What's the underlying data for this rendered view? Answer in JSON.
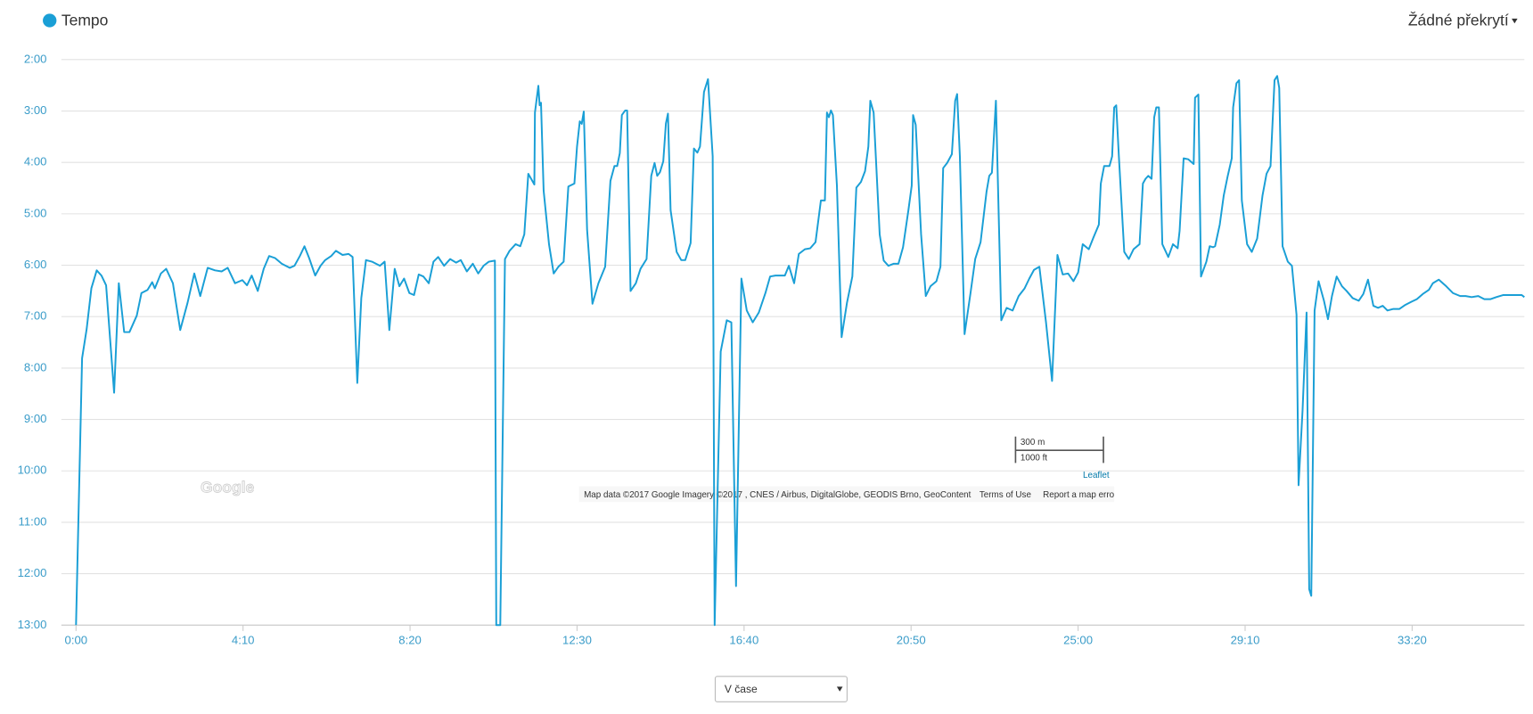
{
  "chart_data": {
    "type": "line",
    "xlim": [
      0,
      2168
    ],
    "xticks": [
      {
        "value": 0,
        "label": "0:00"
      },
      {
        "value": 250,
        "label": "4:10"
      },
      {
        "value": 500,
        "label": "8:20"
      },
      {
        "value": 750,
        "label": "12:30"
      },
      {
        "value": 1000,
        "label": "16:40"
      },
      {
        "value": 1250,
        "label": "20:50"
      },
      {
        "value": 1500,
        "label": "25:00"
      },
      {
        "value": 1750,
        "label": "29:10"
      },
      {
        "value": 2000,
        "label": "33:20"
      }
    ],
    "ylim": [
      13,
      2
    ],
    "yticks": [
      {
        "value": 2,
        "label": "2:00"
      },
      {
        "value": 3,
        "label": "3:00"
      },
      {
        "value": 4,
        "label": "4:00"
      },
      {
        "value": 5,
        "label": "5:00"
      },
      {
        "value": 6,
        "label": "6:00"
      },
      {
        "value": 7,
        "label": "7:00"
      },
      {
        "value": 8,
        "label": "8:00"
      },
      {
        "value": 9,
        "label": "9:00"
      },
      {
        "value": 10,
        "label": "10:00"
      },
      {
        "value": 11,
        "label": "11:00"
      },
      {
        "value": 12,
        "label": "12:00"
      },
      {
        "value": 13,
        "label": "13:00"
      }
    ],
    "grid": true,
    "legend": "top-left",
    "x": [
      0,
      9,
      16,
      23,
      31,
      38,
      45,
      57,
      64,
      72,
      80,
      91,
      98,
      107,
      114,
      118,
      127,
      135,
      145,
      156,
      167,
      177,
      186,
      197,
      208,
      218,
      227,
      238,
      249,
      256,
      263,
      272,
      281,
      289,
      298,
      308,
      320,
      327,
      335,
      342,
      349,
      358,
      366,
      373,
      382,
      389,
      399,
      408,
      414,
      421,
      427,
      434,
      443,
      455,
      462,
      469,
      477,
      484,
      491,
      499,
      506,
      513,
      520,
      528,
      535,
      542,
      551,
      560,
      569,
      576,
      585,
      594,
      602,
      610,
      618,
      627,
      629,
      635,
      642,
      649,
      658,
      665,
      671,
      677,
      686,
      687,
      692,
      694,
      696,
      700,
      708,
      715,
      722,
      730,
      737,
      746,
      750,
      754,
      757,
      760,
      765,
      773,
      782,
      792,
      800,
      806,
      810,
      814,
      817,
      822,
      825,
      830,
      838,
      845,
      854,
      861,
      866,
      870,
      874,
      879,
      883,
      886,
      890,
      899,
      906,
      912,
      920,
      925,
      930,
      934,
      940,
      946,
      953,
      956,
      965,
      974,
      981,
      988,
      996,
      1004,
      1013,
      1022,
      1032,
      1039,
      1047,
      1056,
      1061,
      1067,
      1075,
      1082,
      1091,
      1099,
      1107,
      1115,
      1121,
      1124,
      1127,
      1130,
      1133,
      1139,
      1146,
      1154,
      1162,
      1168,
      1175,
      1181,
      1186,
      1189,
      1194,
      1203,
      1209,
      1216,
      1224,
      1231,
      1238,
      1246,
      1251,
      1253,
      1257,
      1265,
      1272,
      1279,
      1288,
      1294,
      1298,
      1304,
      1311,
      1316,
      1319,
      1323,
      1330,
      1339,
      1346,
      1354,
      1363,
      1367,
      1371,
      1377,
      1385,
      1393,
      1402,
      1411,
      1420,
      1427,
      1434,
      1442,
      1452,
      1461,
      1469,
      1477,
      1485,
      1493,
      1500,
      1507,
      1516,
      1523,
      1531,
      1534,
      1539,
      1547,
      1551,
      1554,
      1557,
      1561,
      1569,
      1576,
      1583,
      1592,
      1597,
      1601,
      1605,
      1610,
      1614,
      1617,
      1621,
      1626,
      1635,
      1642,
      1649,
      1652,
      1658,
      1665,
      1673,
      1675,
      1680,
      1684,
      1692,
      1697,
      1702,
      1705,
      1712,
      1718,
      1724,
      1730,
      1732,
      1737,
      1741,
      1745,
      1753,
      1760,
      1768,
      1776,
      1782,
      1788,
      1794,
      1798,
      1801,
      1806,
      1814,
      1820,
      1827,
      1830,
      1836,
      1842,
      1846,
      1849,
      1854,
      1860,
      1868,
      1874,
      1880,
      1887,
      1895,
      1902,
      1911,
      1920,
      1927,
      1934,
      1942,
      1949,
      1956,
      1963,
      1972,
      1981,
      1990,
      1999,
      2007,
      2016,
      2025,
      2031,
      2040,
      2051,
      2061,
      2072,
      2080,
      2089,
      2099,
      2108,
      2117,
      2126,
      2136,
      2146,
      2156,
      2164,
      2168
    ],
    "series": [
      {
        "name": "Tempo",
        "color": "#1a9fd6",
        "values": [
          13,
          7.81,
          7.24,
          6.45,
          6.1,
          6.2,
          6.39,
          8.48,
          6.35,
          7.3,
          7.3,
          6.98,
          6.54,
          6.48,
          6.33,
          6.45,
          6.16,
          6.07,
          6.35,
          7.26,
          6.73,
          6.16,
          6.6,
          6.05,
          6.1,
          6.12,
          6.05,
          6.35,
          6.29,
          6.39,
          6.2,
          6.5,
          6.07,
          5.82,
          5.86,
          5.97,
          6.05,
          6.01,
          5.82,
          5.63,
          5.86,
          6.2,
          6.01,
          5.9,
          5.82,
          5.72,
          5.8,
          5.78,
          5.84,
          8.29,
          6.64,
          5.9,
          5.93,
          6.01,
          5.93,
          7.26,
          6.07,
          6.41,
          6.26,
          6.54,
          6.58,
          6.18,
          6.22,
          6.35,
          5.93,
          5.84,
          6.01,
          5.88,
          5.95,
          5.9,
          6.12,
          5.97,
          6.16,
          6.01,
          5.93,
          5.91,
          13,
          13,
          5.88,
          5.72,
          5.59,
          5.63,
          5.4,
          4.22,
          4.43,
          3.03,
          2.51,
          2.89,
          2.84,
          4.55,
          5.59,
          6.16,
          6.03,
          5.93,
          4.47,
          4.41,
          3.69,
          3.2,
          3.25,
          3.01,
          5.31,
          6.75,
          6.35,
          6.03,
          4.36,
          4.07,
          4.07,
          3.82,
          3.08,
          2.99,
          2.99,
          6.5,
          6.35,
          6.07,
          5.88,
          4.26,
          4.01,
          4.26,
          4.19,
          3.98,
          3.24,
          3.05,
          4.93,
          5.74,
          5.9,
          5.9,
          5.57,
          3.73,
          3.81,
          3.69,
          2.63,
          2.38,
          3.88,
          13,
          7.68,
          7.07,
          7.11,
          12.24,
          6.26,
          6.88,
          7.11,
          6.92,
          6.54,
          6.22,
          6.2,
          6.2,
          6.2,
          6.01,
          6.35,
          5.78,
          5.69,
          5.67,
          5.55,
          4.74,
          4.74,
          3.03,
          3.12,
          2.99,
          3.08,
          4.45,
          7.4,
          6.73,
          6.22,
          4.49,
          4.38,
          4.17,
          3.69,
          2.8,
          3.03,
          5.4,
          5.91,
          6.01,
          5.97,
          5.97,
          5.65,
          4.93,
          4.45,
          3.08,
          3.27,
          5.4,
          6.6,
          6.41,
          6.31,
          6.03,
          4.11,
          4.01,
          3.84,
          2.8,
          2.67,
          3.88,
          7.34,
          6.54,
          5.88,
          5.55,
          4.57,
          4.26,
          4.2,
          2.8,
          7.07,
          6.83,
          6.88,
          6.6,
          6.45,
          6.26,
          6.09,
          6.03,
          7.11,
          8.25,
          5.8,
          6.18,
          6.16,
          6.31,
          6.14,
          5.59,
          5.69,
          5.46,
          5.21,
          4.41,
          4.07,
          4.07,
          3.88,
          2.93,
          2.89,
          3.88,
          5.74,
          5.88,
          5.69,
          5.59,
          4.41,
          4.32,
          4.26,
          4.32,
          3.12,
          2.93,
          2.93,
          5.59,
          5.84,
          5.59,
          5.67,
          5.33,
          3.92,
          3.94,
          4.03,
          2.74,
          2.68,
          6.22,
          5.93,
          5.63,
          5.65,
          5.63,
          5.21,
          4.64,
          4.26,
          3.92,
          2.93,
          2.46,
          2.4,
          4.74,
          5.59,
          5.74,
          5.48,
          4.64,
          4.22,
          4.07,
          2.4,
          2.32,
          2.55,
          5.63,
          5.93,
          6.01,
          6.96,
          10.28,
          8.82,
          6.92,
          12.3,
          12.43,
          6.88,
          6.31,
          6.69,
          7.05,
          6.6,
          6.22,
          6.41,
          6.5,
          6.64,
          6.69,
          6.56,
          6.28,
          6.79,
          6.83,
          6.79,
          6.88,
          6.85,
          6.85,
          6.77,
          6.71,
          6.66,
          6.56,
          6.48,
          6.35,
          6.28,
          6.41,
          6.54,
          6.6,
          6.6,
          6.62,
          6.6,
          6.66,
          6.66,
          6.62,
          6.58,
          6.58,
          6.58,
          6.58,
          6.62
        ]
      }
    ]
  },
  "ui": {
    "overlay_menu": "Žádné překrytí",
    "map_watermark": "Google",
    "map_attribution": "Map data ©2017 Google Imagery ©2017 , CNES / Airbus, DigitalGlobe, GEODIS Brno, GeoContent",
    "terms": "Terms of Use",
    "report": "Report a map erro",
    "scale_metric": "300 m",
    "scale_imperial": "1000 ft",
    "leaflet": "Leaflet",
    "x_mode_select": "V čase"
  }
}
